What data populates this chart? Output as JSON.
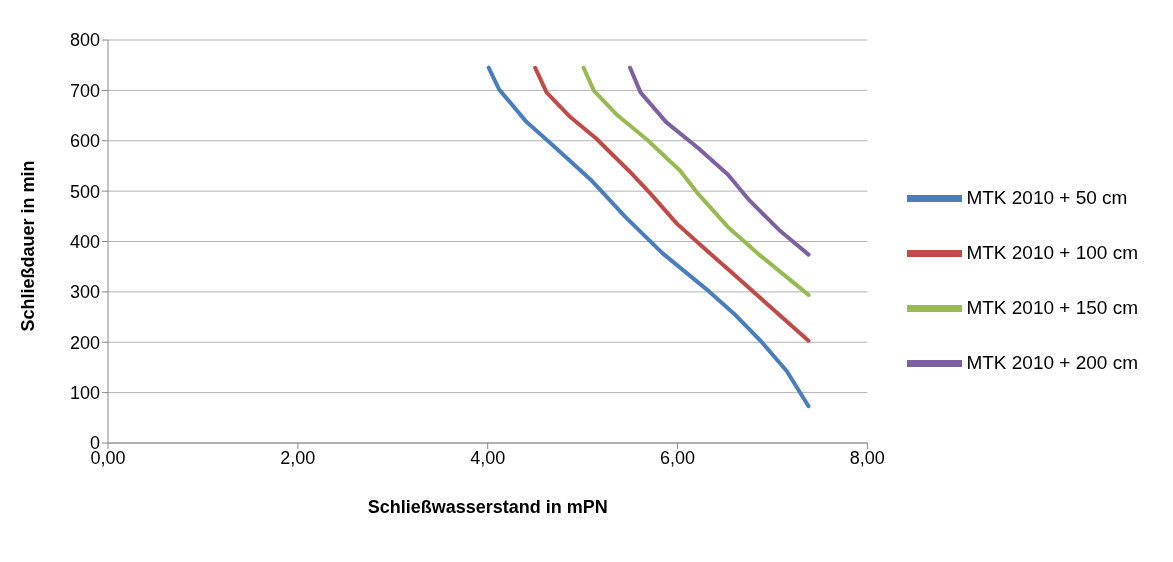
{
  "chart_data": {
    "type": "line",
    "xlabel": "Schließwasserstand in mPN",
    "ylabel": "Schließdauer in min",
    "xlim": [
      0,
      8
    ],
    "xticks": [
      {
        "value": 0,
        "label": "0,00"
      },
      {
        "value": 2,
        "label": "2,00"
      },
      {
        "value": 4,
        "label": "4,00"
      },
      {
        "value": 6,
        "label": "6,00"
      },
      {
        "value": 8,
        "label": "8,00"
      }
    ],
    "ylim": [
      0,
      800
    ],
    "yticks": [
      0,
      100,
      200,
      300,
      400,
      500,
      600,
      700,
      800
    ],
    "grid": "y",
    "legend": "right",
    "marker": "none",
    "line_style": "solid",
    "series": [
      {
        "name": "MTK 2010 + 50 cm",
        "color": "#4a7ebb",
        "x": [
          4.01,
          4.12,
          4.41,
          4.68,
          5.1,
          5.45,
          5.84,
          6.3,
          6.61,
          6.88,
          7.15,
          7.38
        ],
        "values": [
          745,
          702,
          637,
          592,
          520,
          449,
          377,
          306,
          254,
          202,
          143,
          73
        ]
      },
      {
        "name": "MTK 2010 + 100 cm",
        "color": "#be4b48",
        "x": [
          4.5,
          4.62,
          4.87,
          5.14,
          5.49,
          5.72,
          5.99,
          6.26,
          6.61,
          6.92,
          7.38
        ],
        "values": [
          745,
          696,
          647,
          605,
          540,
          494,
          436,
          390,
          332,
          280,
          203
        ]
      },
      {
        "name": "MTK 2010 + 150 cm",
        "color": "#98b954",
        "x": [
          5.01,
          5.12,
          5.37,
          5.68,
          6.03,
          6.22,
          6.53,
          6.84,
          7.38
        ],
        "values": [
          745,
          699,
          650,
          602,
          540,
          494,
          429,
          377,
          294
        ]
      },
      {
        "name": "MTK 2010 + 200 cm",
        "color": "#7d60a0",
        "x": [
          5.5,
          5.61,
          5.88,
          6.22,
          6.53,
          6.76,
          7.07,
          7.38
        ],
        "values": [
          745,
          696,
          637,
          585,
          533,
          481,
          423,
          374
        ]
      }
    ]
  }
}
